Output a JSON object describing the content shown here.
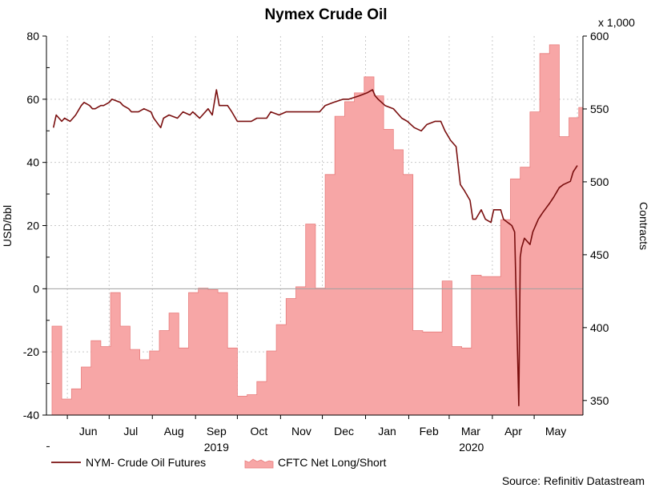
{
  "chart_data": {
    "type": "area+line",
    "title": "Nymex Crude Oil",
    "left_axis": {
      "label": "USD/bbl",
      "ylim": [
        -40,
        80
      ],
      "ticks": [
        "80",
        "60",
        "40",
        "20",
        "0",
        "-20",
        "-40"
      ]
    },
    "right_axis": {
      "label": "Contracts",
      "unit_note": "x 1,000",
      "ylim": [
        340,
        600
      ],
      "ticks": [
        "600",
        "550",
        "500",
        "450",
        "400",
        "350"
      ]
    },
    "x_tick_labels": [
      "Jun",
      "Jul",
      "Aug",
      "Sep",
      "Oct",
      "Nov",
      "Dec",
      "Jan",
      "Feb",
      "Mar",
      "Apr",
      "May"
    ],
    "year_labels": [
      "2019",
      "2020"
    ],
    "grid": true,
    "zero_line": true,
    "legend_position": "bottom-left",
    "source": "Source: Refinitiv Datastream",
    "colors": {
      "line": "#7a0f0f",
      "area_fill": "#f7a6a6",
      "area_edge": "#e87d7d",
      "grid": "#c9c9c9",
      "zero_line": "#a0a0a0"
    },
    "series": [
      {
        "name": "NYM- Crude Oil Futures",
        "kind": "line",
        "axis": "left",
        "unit": "USD/bbl",
        "x": [
          "2019-05-22",
          "2019-05-24",
          "2019-05-28",
          "2019-05-30",
          "2019-06-03",
          "2019-06-05",
          "2019-06-07",
          "2019-06-11",
          "2019-06-13",
          "2019-06-17",
          "2019-06-19",
          "2019-06-21",
          "2019-06-25",
          "2019-06-27",
          "2019-07-01",
          "2019-07-03",
          "2019-07-09",
          "2019-07-11",
          "2019-07-15",
          "2019-07-17",
          "2019-07-22",
          "2019-07-26",
          "2019-07-31",
          "2019-08-02",
          "2019-08-07",
          "2019-08-09",
          "2019-08-13",
          "2019-08-19",
          "2019-08-23",
          "2019-08-28",
          "2019-08-30",
          "2019-09-04",
          "2019-09-10",
          "2019-09-13",
          "2019-09-16",
          "2019-09-18",
          "2019-09-24",
          "2019-09-27",
          "2019-10-01",
          "2019-10-03",
          "2019-10-08",
          "2019-10-11",
          "2019-10-15",
          "2019-10-22",
          "2019-10-25",
          "2019-10-31",
          "2019-11-05",
          "2019-11-11",
          "2019-11-18",
          "2019-11-22",
          "2019-11-29",
          "2019-12-03",
          "2019-12-09",
          "2019-12-16",
          "2019-12-20",
          "2019-12-27",
          "2020-01-02",
          "2020-01-06",
          "2020-01-08",
          "2020-01-10",
          "2020-01-15",
          "2020-01-21",
          "2020-01-27",
          "2020-01-31",
          "2020-02-05",
          "2020-02-10",
          "2020-02-14",
          "2020-02-20",
          "2020-02-24",
          "2020-02-27",
          "2020-03-02",
          "2020-03-06",
          "2020-03-09",
          "2020-03-12",
          "2020-03-16",
          "2020-03-18",
          "2020-03-20",
          "2020-03-24",
          "2020-03-27",
          "2020-03-31",
          "2020-04-02",
          "2020-04-07",
          "2020-04-09",
          "2020-04-15",
          "2020-04-17",
          "2020-04-20",
          "2020-04-21",
          "2020-04-22",
          "2020-04-24",
          "2020-04-28",
          "2020-04-30",
          "2020-05-04",
          "2020-05-07",
          "2020-05-12",
          "2020-05-15",
          "2020-05-19",
          "2020-05-22",
          "2020-05-27",
          "2020-05-29",
          "2020-06-01"
        ],
        "values": [
          51,
          55,
          53,
          54,
          53,
          54,
          55,
          58,
          59,
          58,
          57,
          57,
          58,
          58,
          59,
          60,
          59,
          58,
          57,
          56,
          56,
          57,
          56,
          54,
          51,
          54,
          55,
          54,
          56,
          55,
          56,
          54,
          57,
          55,
          63,
          58,
          58,
          56,
          53,
          53,
          53,
          53,
          54,
          54,
          56,
          55,
          56,
          56,
          56,
          56,
          56,
          58,
          59,
          60,
          60,
          61,
          62,
          63,
          61,
          60,
          58,
          57,
          54,
          53,
          51,
          50,
          52,
          53,
          53,
          50,
          47,
          45,
          33,
          31,
          28,
          22,
          22,
          25,
          22,
          21,
          25,
          25,
          22,
          20,
          18,
          -37,
          10,
          13,
          16,
          14,
          18,
          22,
          24,
          27,
          29,
          32,
          33,
          34,
          37,
          39
        ]
      },
      {
        "name": "CFTC Net Long/Short",
        "kind": "area",
        "axis": "right",
        "unit": "Contracts (x 1,000)",
        "x": [
          "2019-05-21",
          "2019-05-28",
          "2019-06-04",
          "2019-06-11",
          "2019-06-18",
          "2019-06-25",
          "2019-07-02",
          "2019-07-09",
          "2019-07-16",
          "2019-07-23",
          "2019-07-30",
          "2019-08-06",
          "2019-08-13",
          "2019-08-20",
          "2019-08-27",
          "2019-09-03",
          "2019-09-10",
          "2019-09-17",
          "2019-09-24",
          "2019-10-01",
          "2019-10-08",
          "2019-10-15",
          "2019-10-22",
          "2019-10-29",
          "2019-11-05",
          "2019-11-12",
          "2019-11-19",
          "2019-11-26",
          "2019-12-03",
          "2019-12-10",
          "2019-12-17",
          "2019-12-24",
          "2019-12-31",
          "2020-01-07",
          "2020-01-14",
          "2020-01-21",
          "2020-01-28",
          "2020-02-04",
          "2020-02-11",
          "2020-02-18",
          "2020-02-25",
          "2020-03-03",
          "2020-03-10",
          "2020-03-17",
          "2020-03-24",
          "2020-03-31",
          "2020-04-07",
          "2020-04-14",
          "2020-04-21",
          "2020-04-28",
          "2020-05-05",
          "2020-05-12",
          "2020-05-19",
          "2020-05-26",
          "2020-06-02"
        ],
        "values": [
          401,
          351,
          358,
          373,
          391,
          387,
          424,
          401,
          385,
          378,
          384,
          398,
          410,
          386,
          424,
          427,
          426,
          424,
          386,
          353,
          354,
          363,
          384,
          402,
          420,
          428,
          471,
          427,
          505,
          545,
          555,
          561,
          572,
          559,
          536,
          522,
          505,
          398,
          397,
          397,
          432,
          387,
          386,
          436,
          435,
          435,
          474,
          502,
          510,
          548,
          588,
          594,
          531,
          544,
          551
        ]
      }
    ]
  }
}
